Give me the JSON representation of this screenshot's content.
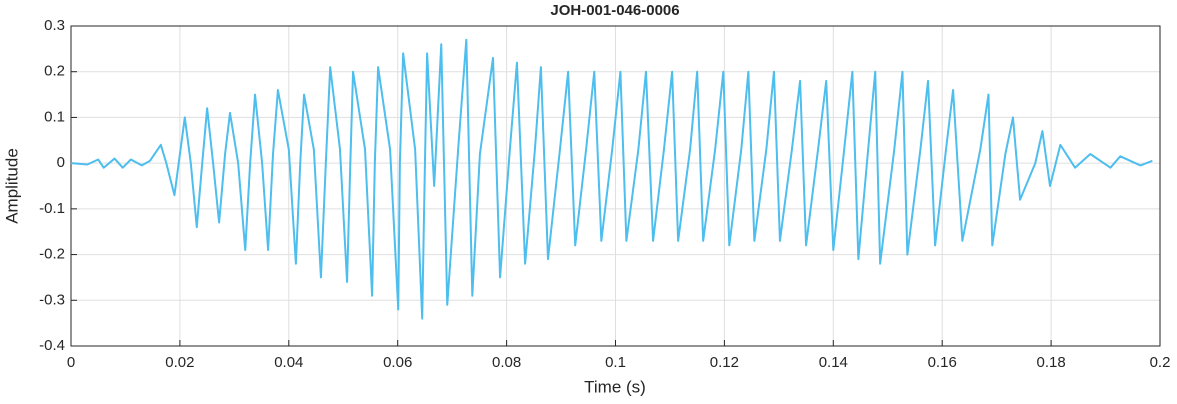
{
  "chart_data": {
    "type": "line",
    "title": "JOH-001-046-0006",
    "xlabel": "Time (s)",
    "ylabel": "Amplitude",
    "xlim": [
      0,
      0.2
    ],
    "ylim": [
      -0.4,
      0.3
    ],
    "xticks": [
      0,
      0.02,
      0.04,
      0.06,
      0.08,
      0.1,
      0.12,
      0.14,
      0.16,
      0.18,
      0.2
    ],
    "yticks": [
      -0.4,
      -0.3,
      -0.2,
      -0.1,
      0,
      0.1,
      0.2,
      0.3
    ],
    "grid": true,
    "series": [
      {
        "color": "#4dbeee",
        "x": [
          0,
          0.003,
          0.005,
          0.006,
          0.008,
          0.0095,
          0.011,
          0.013,
          0.0145,
          0.0165,
          0.0175,
          0.019,
          0.0209,
          0.022,
          0.0231,
          0.0241,
          0.025,
          0.0261,
          0.0272,
          0.0283,
          0.0292,
          0.0307,
          0.032,
          0.0329,
          0.0338,
          0.0351,
          0.0362,
          0.0371,
          0.038,
          0.04,
          0.0413,
          0.0421,
          0.0428,
          0.0446,
          0.0459,
          0.0468,
          0.0476,
          0.0494,
          0.0507,
          0.0513,
          0.0518,
          0.054,
          0.0553,
          0.0558,
          0.0564,
          0.0586,
          0.0601,
          0.0604,
          0.061,
          0.0632,
          0.0645,
          0.065,
          0.0654,
          0.0667,
          0.068,
          0.0691,
          0.0711,
          0.0726,
          0.0737,
          0.0751,
          0.0775,
          0.0788,
          0.0806,
          0.0819,
          0.0834,
          0.0852,
          0.0863,
          0.0876,
          0.0898,
          0.0913,
          0.0926,
          0.0946,
          0.0961,
          0.0974,
          0.0994,
          0.1009,
          0.102,
          0.1042,
          0.1056,
          0.1069,
          0.1089,
          0.1104,
          0.1115,
          0.1137,
          0.115,
          0.1161,
          0.1183,
          0.1198,
          0.1209,
          0.1231,
          0.1244,
          0.1255,
          0.1277,
          0.1291,
          0.1302,
          0.1324,
          0.1339,
          0.135,
          0.1372,
          0.1387,
          0.14,
          0.142,
          0.1435,
          0.1446,
          0.1464,
          0.1477,
          0.1486,
          0.1512,
          0.1527,
          0.1536,
          0.156,
          0.1574,
          0.1587,
          0.1607,
          0.162,
          0.1637,
          0.167,
          0.1685,
          0.1692,
          0.1716,
          0.173,
          0.1743,
          0.1771,
          0.1784,
          0.1798,
          0.1817,
          0.1844,
          0.1872,
          0.1909,
          0.1927,
          0.1964,
          0.1986
        ],
        "values": [
          0,
          -0.003,
          0.008,
          -0.01,
          0.01,
          -0.01,
          0.008,
          -0.005,
          0.005,
          0.04,
          0.0,
          -0.07,
          0.1,
          0.0,
          -0.14,
          0.0,
          0.12,
          0.0,
          -0.13,
          0.02,
          0.11,
          0.0,
          -0.19,
          0.0,
          0.15,
          0.0,
          -0.19,
          0.02,
          0.16,
          0.03,
          -0.22,
          0.0,
          0.15,
          0.03,
          -0.25,
          0.0,
          0.21,
          0.03,
          -0.26,
          0.0,
          0.2,
          0.03,
          -0.29,
          0.0,
          0.21,
          0.03,
          -0.32,
          0.0,
          0.24,
          0.03,
          -0.34,
          0.0,
          0.24,
          -0.05,
          0.26,
          -0.31,
          0.03,
          0.27,
          -0.29,
          0.02,
          0.23,
          -0.25,
          0.03,
          0.22,
          -0.22,
          0.03,
          0.21,
          -0.21,
          0.03,
          0.2,
          -0.18,
          0.03,
          0.2,
          -0.17,
          0.03,
          0.2,
          -0.17,
          0.03,
          0.2,
          -0.17,
          0.03,
          0.2,
          -0.17,
          0.03,
          0.2,
          -0.17,
          0.03,
          0.2,
          -0.18,
          0.03,
          0.2,
          -0.17,
          0.03,
          0.2,
          -0.17,
          0.03,
          0.18,
          -0.18,
          0.03,
          0.18,
          -0.19,
          0.03,
          0.2,
          -0.21,
          0.03,
          0.2,
          -0.22,
          0.03,
          0.2,
          -0.2,
          0.03,
          0.18,
          -0.18,
          0.03,
          0.16,
          -0.17,
          0.03,
          0.15,
          -0.18,
          0.02,
          0.1,
          -0.08,
          0.0,
          0.07,
          -0.05,
          0.04,
          -0.01,
          0.02,
          -0.01,
          0.015,
          -0.005,
          0.005
        ]
      }
    ]
  }
}
